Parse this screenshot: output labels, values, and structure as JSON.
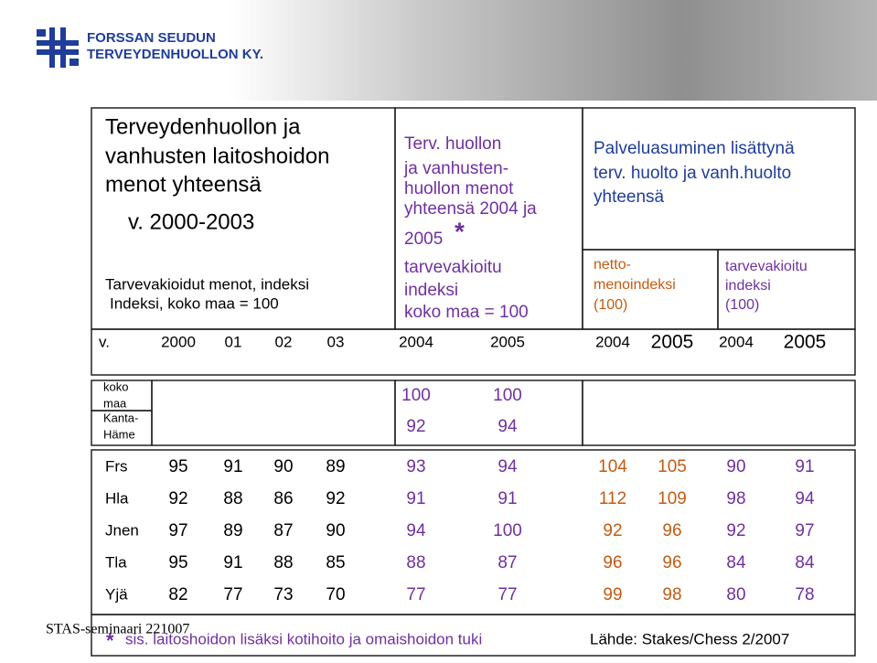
{
  "header": {
    "org": [
      "FORSSAN SEUDUN",
      "TERVEYDENHUOLLON KY."
    ]
  },
  "table": {
    "left_header": {
      "title": [
        "Terveydenhuollon ja",
        "vanhusten laitoshoidon",
        "menot yhteensä",
        "v. 2000-2003"
      ],
      "subtitle": [
        "Tarvevakioidut menot, indeksi",
        "Indeksi, koko maa = 100"
      ]
    },
    "middle_header": {
      "title": [
        "Terv. huollon",
        "ja vanhusten-",
        "huollon menot",
        "yhteensä 2004 ja",
        "2005"
      ],
      "star": "*",
      "subtitle": [
        "tarvevakioitu",
        "indeksi",
        "koko maa = 100"
      ]
    },
    "right_header": {
      "title": [
        "Palveluasuminen lisättynä",
        "terv. huolto ja vanh.huolto",
        "yhteensä"
      ],
      "sub_left": [
        "netto-",
        "menoindeksi",
        "(100)"
      ],
      "sub_right": [
        "tarvevakioitu",
        "indeksi",
        "(100)"
      ]
    },
    "year_row": [
      "v.",
      "2000",
      "01",
      "02",
      "03",
      "2004",
      "2005",
      "2004",
      "2005",
      "2004",
      "2005"
    ],
    "reference_rows": [
      {
        "label": [
          "koko",
          "maa"
        ],
        "values": [
          "100",
          "100"
        ]
      },
      {
        "label": [
          "Kanta-",
          "Häme"
        ],
        "values": [
          "92",
          "94"
        ]
      }
    ],
    "rows": [
      {
        "label": "Frs",
        "values": [
          "95",
          "91",
          "90",
          "89",
          "93",
          "94",
          "104",
          "105",
          "90",
          "91"
        ]
      },
      {
        "label": "Hla",
        "values": [
          "92",
          "88",
          "86",
          "92",
          "91",
          "91",
          "112",
          "109",
          "98",
          "94"
        ]
      },
      {
        "label": "Jnen",
        "values": [
          "97",
          "89",
          "87",
          "90",
          "94",
          "100",
          "92",
          "96",
          "92",
          "97"
        ]
      },
      {
        "label": "Tla",
        "values": [
          "95",
          "91",
          "88",
          "85",
          "88",
          "87",
          "96",
          "96",
          "84",
          "84"
        ]
      },
      {
        "label": "Yjä",
        "values": [
          "82",
          "77",
          "73",
          "70",
          "77",
          "77",
          "99",
          "98",
          "80",
          "78"
        ]
      }
    ]
  },
  "footer": {
    "seminar": "STAS-seminaari 221007",
    "star": "*",
    "note": "sis. laitoshoidon lisäksi kotihoito ja omaishoidon tuki",
    "source": "Lähde: Stakes/Chess 2/2007"
  }
}
